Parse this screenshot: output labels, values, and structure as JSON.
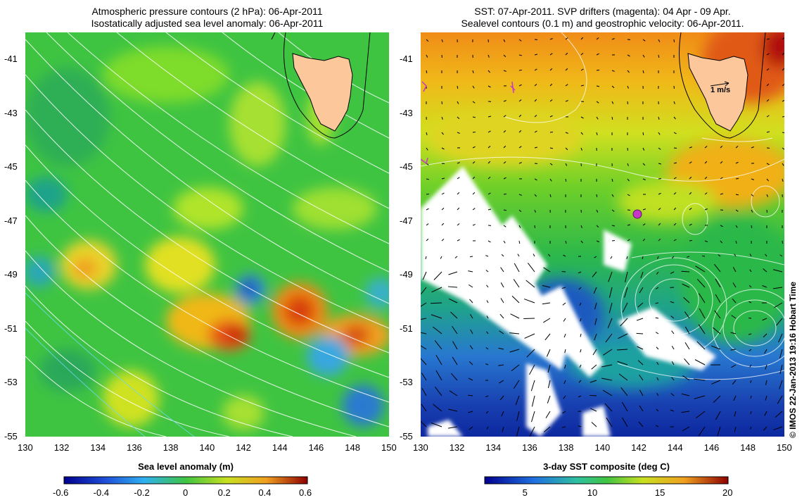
{
  "left_panel": {
    "title_line1": "Atmospheric pressure contours (2 hPa): 06-Apr-2011",
    "title_line2": "Isostatically adjusted sea level anomaly: 06-Apr-2011",
    "colorbar_label": "Sea level anomaly (m)",
    "colorbar_ticks": [
      "-0.6",
      "-0.4",
      "-0.2",
      "0",
      "0.2",
      "0.4",
      "0.6"
    ]
  },
  "right_panel": {
    "title_line1": "SST: 07-Apr-2011. SVP drifters (magenta): 04 Apr - 09 Apr.",
    "title_line2": "Sealevel contours (0.1 m) and geostrophic velocity: 06-Apr-2011.",
    "colorbar_label": "3-day SST composite (deg C)",
    "colorbar_ticks": [
      "5",
      "10",
      "15",
      "20"
    ],
    "scale_arrow_label": "1 m/s"
  },
  "lon_ticks": [
    "130",
    "132",
    "134",
    "136",
    "138",
    "140",
    "142",
    "144",
    "146",
    "148",
    "150"
  ],
  "lat_ticks": [
    "-41",
    "-43",
    "-45",
    "-47",
    "-49",
    "-51",
    "-53",
    "-55"
  ],
  "copyright": "© IMOS 22-Jan-2013 19:16 Hobart Time",
  "colors": {
    "land": "#fcc79a",
    "contour": "#ffffff",
    "drifter": "#c838c8"
  }
}
